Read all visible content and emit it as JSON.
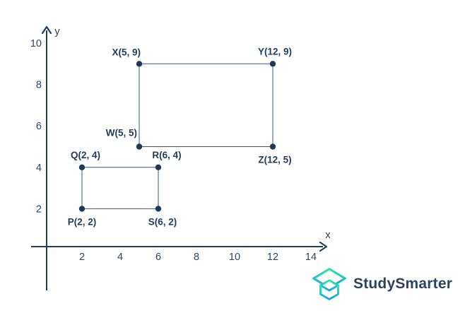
{
  "colors": {
    "axis": "#1f3e5f",
    "tick_text": "#27476a",
    "label_text": "#1d3c5c",
    "shape_line": "#35597d",
    "point_fill": "#1c3a58",
    "logo_gradient_start": "#2ee6a0",
    "logo_gradient_end": "#18a0e8",
    "logo_text": "#2a4460",
    "background": "#ffffff"
  },
  "chart_data": {
    "type": "scatter",
    "title": "",
    "xlabel": "x",
    "ylabel": "y",
    "xlim": [
      0,
      15.2
    ],
    "ylim": [
      0,
      10.8
    ],
    "x_ticks": [
      2,
      4,
      6,
      8,
      10,
      12,
      14
    ],
    "y_ticks": [
      2,
      4,
      6,
      8,
      10
    ],
    "grid": false,
    "legend": false,
    "shapes": [
      {
        "name": "rectangle-PQRS",
        "vertices": [
          [
            2,
            2
          ],
          [
            2,
            4
          ],
          [
            6,
            4
          ],
          [
            6,
            2
          ]
        ],
        "closed": true
      },
      {
        "name": "rectangle-WXYZ",
        "vertices": [
          [
            5,
            5
          ],
          [
            5,
            9
          ],
          [
            12,
            9
          ],
          [
            12,
            5
          ]
        ],
        "closed": true
      }
    ],
    "points": [
      {
        "name": "P",
        "x": 2,
        "y": 2,
        "label": "P(2, 2)",
        "label_pos": "below",
        "label_dx": 0
      },
      {
        "name": "Q",
        "x": 2,
        "y": 4,
        "label": "Q(2, 4)",
        "label_pos": "above",
        "label_dx": 5
      },
      {
        "name": "R",
        "x": 6,
        "y": 4,
        "label": "R(6, 4)",
        "label_pos": "above",
        "label_dx": 12
      },
      {
        "name": "S",
        "x": 6,
        "y": 2,
        "label": "S(6, 2)",
        "label_pos": "below",
        "label_dx": 6
      },
      {
        "name": "W",
        "x": 5,
        "y": 5,
        "label": "W(5, 5)",
        "label_pos": "left-above",
        "label_dx": -3
      },
      {
        "name": "X",
        "x": 5,
        "y": 9,
        "label": "X(5, 9)",
        "label_pos": "above-end",
        "label_dx": 2
      },
      {
        "name": "Y",
        "x": 12,
        "y": 9,
        "label": "Y(12, 9)",
        "label_pos": "above",
        "label_dx": 3
      },
      {
        "name": "Z",
        "x": 12,
        "y": 5,
        "label": "Z(12, 5)",
        "label_pos": "below",
        "label_dx": 3
      }
    ]
  },
  "watermark": {
    "brand_text": "StudySmarter"
  }
}
